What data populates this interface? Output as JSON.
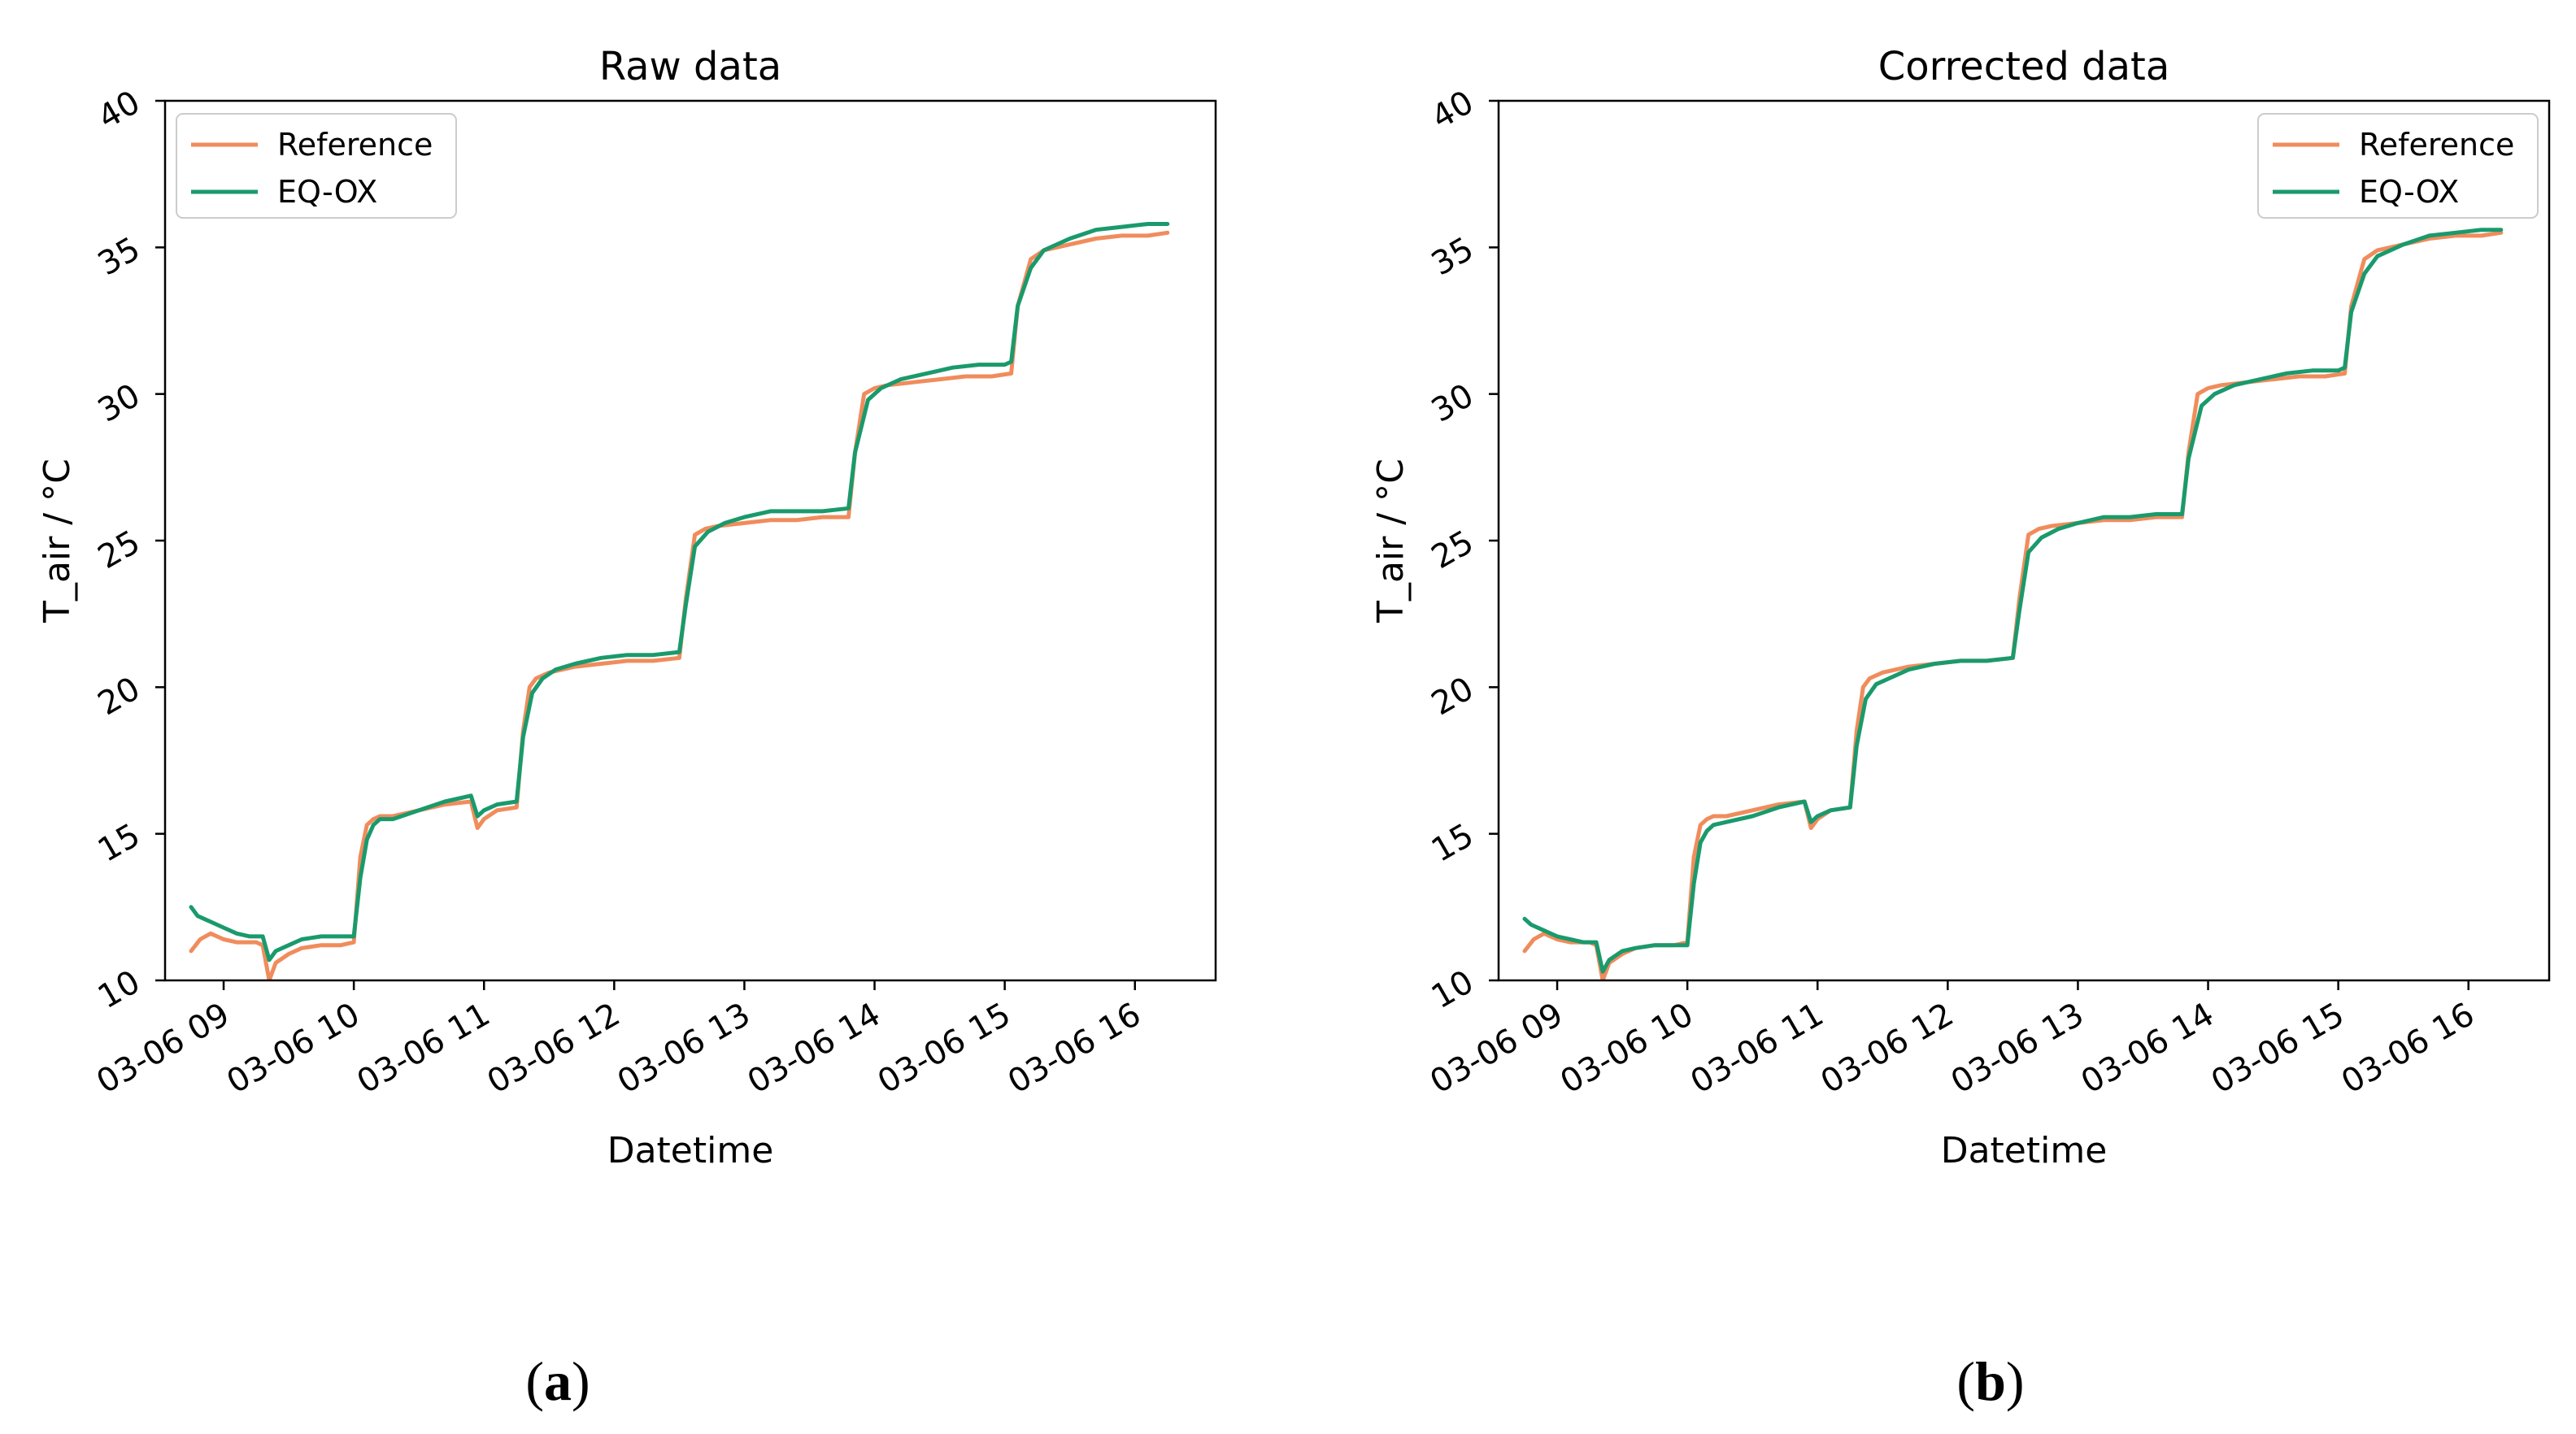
{
  "chart_data": [
    {
      "type": "line",
      "title": "Raw data",
      "xlabel": "Datetime",
      "ylabel": "T_air / °C",
      "caption": "(a)",
      "xlim": [
        8.55,
        16.62
      ],
      "ylim": [
        10,
        40
      ],
      "xticks": [
        9,
        10,
        11,
        12,
        13,
        14,
        15,
        16
      ],
      "xtick_labels": [
        "03-06 09",
        "03-06 10",
        "03-06 11",
        "03-06 12",
        "03-06 13",
        "03-06 14",
        "03-06 15",
        "03-06 16"
      ],
      "yticks": [
        10,
        15,
        20,
        25,
        30,
        35,
        40
      ],
      "ytick_labels": [
        "10",
        "15",
        "20",
        "25",
        "30",
        "35",
        "40"
      ],
      "legend": {
        "position": "top-left",
        "entries": [
          "Reference",
          "EQ-OX"
        ]
      },
      "series": [
        {
          "name": "Reference",
          "color": "#f08c5c",
          "x": [
            8.75,
            8.82,
            8.9,
            9.0,
            9.1,
            9.25,
            9.3,
            9.35,
            9.4,
            9.5,
            9.6,
            9.75,
            9.9,
            10.0,
            10.05,
            10.1,
            10.15,
            10.2,
            10.3,
            10.5,
            10.7,
            10.9,
            10.95,
            11.0,
            11.1,
            11.25,
            11.3,
            11.35,
            11.4,
            11.5,
            11.7,
            11.9,
            12.1,
            12.3,
            12.5,
            12.55,
            12.62,
            12.7,
            12.8,
            13.0,
            13.2,
            13.4,
            13.6,
            13.8,
            13.85,
            13.92,
            14.0,
            14.1,
            14.3,
            14.5,
            14.7,
            14.9,
            15.05,
            15.1,
            15.2,
            15.3,
            15.5,
            15.7,
            15.9,
            16.1,
            16.25
          ],
          "y": [
            11.0,
            11.4,
            11.6,
            11.4,
            11.3,
            11.3,
            11.2,
            10.0,
            10.6,
            10.9,
            11.1,
            11.2,
            11.2,
            11.3,
            14.2,
            15.3,
            15.5,
            15.6,
            15.6,
            15.8,
            16.0,
            16.1,
            15.2,
            15.5,
            15.8,
            15.9,
            18.5,
            20.0,
            20.3,
            20.5,
            20.7,
            20.8,
            20.9,
            20.9,
            21.0,
            23.0,
            25.2,
            25.4,
            25.5,
            25.6,
            25.7,
            25.7,
            25.8,
            25.8,
            28.0,
            30.0,
            30.2,
            30.3,
            30.4,
            30.5,
            30.6,
            30.6,
            30.7,
            33.0,
            34.6,
            34.9,
            35.1,
            35.3,
            35.4,
            35.4,
            35.5
          ]
        },
        {
          "name": "EQ-OX",
          "color": "#1a9a6c",
          "x": [
            8.75,
            8.8,
            8.9,
            9.0,
            9.1,
            9.2,
            9.3,
            9.35,
            9.4,
            9.5,
            9.6,
            9.75,
            9.9,
            10.0,
            10.05,
            10.1,
            10.15,
            10.2,
            10.3,
            10.5,
            10.7,
            10.9,
            10.95,
            11.0,
            11.1,
            11.25,
            11.3,
            11.37,
            11.45,
            11.55,
            11.7,
            11.9,
            12.1,
            12.3,
            12.5,
            12.55,
            12.62,
            12.72,
            12.85,
            13.0,
            13.2,
            13.4,
            13.6,
            13.8,
            13.85,
            13.95,
            14.05,
            14.2,
            14.4,
            14.6,
            14.8,
            15.0,
            15.05,
            15.1,
            15.2,
            15.3,
            15.5,
            15.7,
            15.9,
            16.1,
            16.25
          ],
          "y": [
            12.5,
            12.2,
            12.0,
            11.8,
            11.6,
            11.5,
            11.5,
            10.7,
            11.0,
            11.2,
            11.4,
            11.5,
            11.5,
            11.5,
            13.5,
            14.8,
            15.3,
            15.5,
            15.5,
            15.8,
            16.1,
            16.3,
            15.6,
            15.8,
            16.0,
            16.1,
            18.3,
            19.8,
            20.3,
            20.6,
            20.8,
            21.0,
            21.1,
            21.1,
            21.2,
            22.8,
            24.8,
            25.3,
            25.6,
            25.8,
            26.0,
            26.0,
            26.0,
            26.1,
            28.0,
            29.8,
            30.2,
            30.5,
            30.7,
            30.9,
            31.0,
            31.0,
            31.1,
            33.0,
            34.3,
            34.9,
            35.3,
            35.6,
            35.7,
            35.8,
            35.8
          ]
        }
      ]
    },
    {
      "type": "line",
      "title": "Corrected data",
      "xlabel": "Datetime",
      "ylabel": "T_air / °C",
      "caption": "(b)",
      "xlim": [
        8.55,
        16.62
      ],
      "ylim": [
        10,
        40
      ],
      "xticks": [
        9,
        10,
        11,
        12,
        13,
        14,
        15,
        16
      ],
      "xtick_labels": [
        "03-06 09",
        "03-06 10",
        "03-06 11",
        "03-06 12",
        "03-06 13",
        "03-06 14",
        "03-06 15",
        "03-06 16"
      ],
      "yticks": [
        10,
        15,
        20,
        25,
        30,
        35,
        40
      ],
      "ytick_labels": [
        "10",
        "15",
        "20",
        "25",
        "30",
        "35",
        "40"
      ],
      "legend": {
        "position": "top-right",
        "entries": [
          "Reference",
          "EQ-OX"
        ]
      },
      "series": [
        {
          "name": "Reference",
          "color": "#f08c5c",
          "x": [
            8.75,
            8.82,
            8.9,
            9.0,
            9.1,
            9.25,
            9.3,
            9.35,
            9.4,
            9.5,
            9.6,
            9.75,
            9.9,
            10.0,
            10.05,
            10.1,
            10.15,
            10.2,
            10.3,
            10.5,
            10.7,
            10.9,
            10.95,
            11.0,
            11.1,
            11.25,
            11.3,
            11.35,
            11.4,
            11.5,
            11.7,
            11.9,
            12.1,
            12.3,
            12.5,
            12.55,
            12.62,
            12.7,
            12.8,
            13.0,
            13.2,
            13.4,
            13.6,
            13.8,
            13.85,
            13.92,
            14.0,
            14.1,
            14.3,
            14.5,
            14.7,
            14.9,
            15.05,
            15.1,
            15.2,
            15.3,
            15.5,
            15.7,
            15.9,
            16.1,
            16.25
          ],
          "y": [
            11.0,
            11.4,
            11.6,
            11.4,
            11.3,
            11.3,
            11.2,
            10.0,
            10.6,
            10.9,
            11.1,
            11.2,
            11.2,
            11.3,
            14.2,
            15.3,
            15.5,
            15.6,
            15.6,
            15.8,
            16.0,
            16.1,
            15.2,
            15.5,
            15.8,
            15.9,
            18.5,
            20.0,
            20.3,
            20.5,
            20.7,
            20.8,
            20.9,
            20.9,
            21.0,
            23.0,
            25.2,
            25.4,
            25.5,
            25.6,
            25.7,
            25.7,
            25.8,
            25.8,
            28.0,
            30.0,
            30.2,
            30.3,
            30.4,
            30.5,
            30.6,
            30.6,
            30.7,
            33.0,
            34.6,
            34.9,
            35.1,
            35.3,
            35.4,
            35.4,
            35.5
          ]
        },
        {
          "name": "EQ-OX",
          "color": "#1a9a6c",
          "x": [
            8.75,
            8.8,
            8.9,
            9.0,
            9.1,
            9.2,
            9.3,
            9.35,
            9.4,
            9.5,
            9.6,
            9.75,
            9.9,
            10.0,
            10.05,
            10.1,
            10.15,
            10.2,
            10.3,
            10.5,
            10.7,
            10.9,
            10.95,
            11.0,
            11.1,
            11.25,
            11.3,
            11.37,
            11.45,
            11.55,
            11.7,
            11.9,
            12.1,
            12.3,
            12.5,
            12.55,
            12.62,
            12.72,
            12.85,
            13.0,
            13.2,
            13.4,
            13.6,
            13.8,
            13.85,
            13.95,
            14.05,
            14.2,
            14.4,
            14.6,
            14.8,
            15.0,
            15.05,
            15.1,
            15.2,
            15.3,
            15.5,
            15.7,
            15.9,
            16.1,
            16.25
          ],
          "y": [
            12.1,
            11.9,
            11.7,
            11.5,
            11.4,
            11.3,
            11.3,
            10.3,
            10.7,
            11.0,
            11.1,
            11.2,
            11.2,
            11.2,
            13.3,
            14.7,
            15.1,
            15.3,
            15.4,
            15.6,
            15.9,
            16.1,
            15.4,
            15.6,
            15.8,
            15.9,
            18.0,
            19.6,
            20.1,
            20.3,
            20.6,
            20.8,
            20.9,
            20.9,
            21.0,
            22.6,
            24.6,
            25.1,
            25.4,
            25.6,
            25.8,
            25.8,
            25.9,
            25.9,
            27.8,
            29.6,
            30.0,
            30.3,
            30.5,
            30.7,
            30.8,
            30.8,
            30.9,
            32.8,
            34.1,
            34.7,
            35.1,
            35.4,
            35.5,
            35.6,
            35.6
          ]
        }
      ]
    }
  ]
}
